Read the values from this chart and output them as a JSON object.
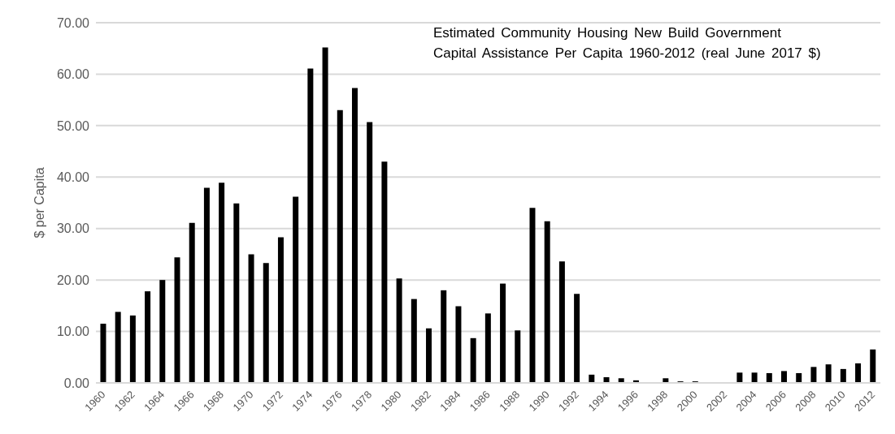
{
  "chart_data": {
    "type": "bar",
    "title": "Estimated Community Housing New Build Government Capital Assistance Per Capita 1960-2012 (real June 2017 $)",
    "ylabel": "$ per Capita",
    "categories": [
      "1960",
      null,
      "1962",
      null,
      "1964",
      null,
      "1966",
      null,
      "1968",
      null,
      "1970",
      null,
      "1972",
      null,
      "1974",
      null,
      "1976",
      null,
      "1978",
      null,
      "1980",
      null,
      "1982",
      null,
      "1984",
      null,
      "1986",
      null,
      "1988",
      null,
      "1990",
      null,
      "1992",
      null,
      "1994",
      null,
      "1996",
      null,
      "1998",
      null,
      "2000",
      null,
      "2002",
      null,
      "2004",
      null,
      "2006",
      null,
      "2008",
      null,
      "2010",
      null,
      "2012"
    ],
    "values": [
      11.5,
      13.8,
      13.1,
      17.8,
      20.0,
      24.4,
      31.1,
      37.9,
      38.9,
      34.9,
      25.0,
      23.3,
      28.3,
      36.2,
      61.1,
      65.2,
      53.0,
      57.3,
      50.7,
      43.0,
      20.3,
      16.3,
      10.6,
      18.0,
      14.9,
      8.7,
      13.5,
      19.3,
      10.2,
      34.0,
      31.4,
      23.6,
      17.3,
      1.6,
      1.1,
      0.9,
      0.5,
      0,
      0.9,
      0.3,
      0.3,
      0,
      0,
      2.0,
      2.0,
      1.9,
      2.3,
      1.9,
      3.1,
      3.6,
      2.7,
      3.8,
      6.5
    ],
    "color": "#000000",
    "ylim": [
      0,
      70
    ],
    "yticks": [
      {
        "value": 0,
        "label": "0.00"
      },
      {
        "value": 10,
        "label": "10.00"
      },
      {
        "value": 20,
        "label": "20.00"
      },
      {
        "value": 30,
        "label": "30.00"
      },
      {
        "value": 40,
        "label": "40.00"
      },
      {
        "value": 50,
        "label": "50.00"
      },
      {
        "value": 60,
        "label": "60.00"
      },
      {
        "value": 70,
        "label": "70.00"
      }
    ],
    "grid": "y"
  }
}
